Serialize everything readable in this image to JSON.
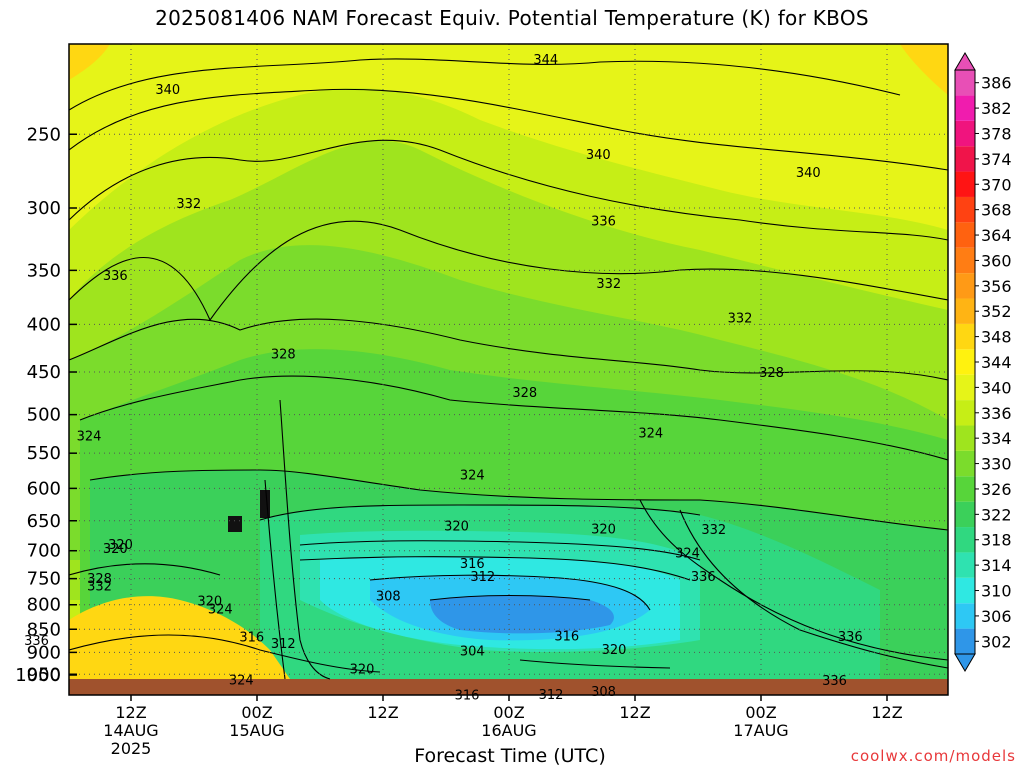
{
  "header": {
    "title": "2025081406 NAM Forecast Equiv. Potential Temperature (K) for KBOS"
  },
  "footer": {
    "xaxis_title": "Forecast Time (UTC)",
    "credit": "coolwx.com/models"
  },
  "chart_data": {
    "type": "heatmap",
    "title": "2025081406 NAM Forecast Equiv. Potential Temperature (K) for KBOS",
    "xlabel": "Forecast Time (UTC)",
    "ylabel": "",
    "y_scale": "log",
    "y_inverted": true,
    "ylim": [
      1000,
      200
    ],
    "y_ticks": [
      250,
      300,
      350,
      400,
      450,
      500,
      550,
      600,
      650,
      700,
      750,
      800,
      850,
      900,
      950,
      1000
    ],
    "x_ticks": [
      {
        "label": "12Z",
        "sub": [
          "14AUG",
          "2025"
        ]
      },
      {
        "label": "00Z",
        "sub": [
          "15AUG"
        ]
      },
      {
        "label": "12Z",
        "sub": []
      },
      {
        "label": "00Z",
        "sub": [
          "16AUG"
        ]
      },
      {
        "label": "12Z",
        "sub": []
      },
      {
        "label": "00Z",
        "sub": [
          "17AUG"
        ]
      },
      {
        "label": "12Z",
        "sub": []
      }
    ],
    "grid": true,
    "colorbar": {
      "labels": [
        302,
        306,
        310,
        314,
        318,
        322,
        326,
        330,
        334,
        336,
        340,
        344,
        348,
        352,
        356,
        360,
        364,
        368,
        370,
        374,
        378,
        382,
        386
      ],
      "colors": [
        "#2f96e8",
        "#2ec8f4",
        "#2fe8e2",
        "#2fe2b0",
        "#30d880",
        "#3bd05a",
        "#57d53a",
        "#7bdc2c",
        "#9fe41e",
        "#c6ee16",
        "#e6f418",
        "#fff20f",
        "#ffd712",
        "#ffb414",
        "#ff9a16",
        "#ff7d14",
        "#ff6210",
        "#ff4212",
        "#ff1414",
        "#f0144a",
        "#f0147e",
        "#f01cae",
        "#e84fb6"
      ]
    },
    "contour_labels": [
      {
        "text": "344",
        "t": 39.5,
        "p": 208
      },
      {
        "text": "340",
        "t": 3.5,
        "p": 224
      },
      {
        "text": "340",
        "t": 44.5,
        "p": 263
      },
      {
        "text": "340",
        "t": 64.5,
        "p": 275
      },
      {
        "text": "332",
        "t": 5.5,
        "p": 297
      },
      {
        "text": "336",
        "t": 45,
        "p": 310
      },
      {
        "text": "336",
        "t": -1.5,
        "p": 355
      },
      {
        "text": "332",
        "t": 45.5,
        "p": 362
      },
      {
        "text": "332",
        "t": 58,
        "p": 394
      },
      {
        "text": "328",
        "t": 14.5,
        "p": 431
      },
      {
        "text": "328",
        "t": 61,
        "p": 451
      },
      {
        "text": "328",
        "t": 37.5,
        "p": 474
      },
      {
        "text": "324",
        "t": -4,
        "p": 528
      },
      {
        "text": "324",
        "t": 49.5,
        "p": 524
      },
      {
        "text": "324",
        "t": 32.5,
        "p": 581
      },
      {
        "text": "320",
        "t": 31,
        "p": 659
      },
      {
        "text": "320",
        "t": 45,
        "p": 664
      },
      {
        "text": "320",
        "t": -1.5,
        "p": 697
      },
      {
        "text": "332",
        "t": 55.5,
        "p": 665
      },
      {
        "text": "324",
        "t": 53,
        "p": 705
      },
      {
        "text": "316",
        "t": 32.5,
        "p": 723
      },
      {
        "text": "312",
        "t": 33.5,
        "p": 747
      },
      {
        "text": "336",
        "t": 54.5,
        "p": 747
      },
      {
        "text": "328",
        "t": -3,
        "p": 751
      },
      {
        "text": "332",
        "t": -3,
        "p": 765
      },
      {
        "text": "308",
        "t": 24.5,
        "p": 784
      },
      {
        "text": "320",
        "t": 7.5,
        "p": 794
      },
      {
        "text": "324",
        "t": 8.5,
        "p": 809
      },
      {
        "text": "316",
        "t": 11.5,
        "p": 868
      },
      {
        "text": "316",
        "t": 41.5,
        "p": 865
      },
      {
        "text": "336",
        "t": 68.5,
        "p": 866
      },
      {
        "text": "336",
        "t": -9,
        "p": 875
      },
      {
        "text": "312",
        "t": 14.5,
        "p": 882
      },
      {
        "text": "304",
        "t": 32.5,
        "p": 898
      },
      {
        "text": "320",
        "t": 46,
        "p": 895
      },
      {
        "text": "320",
        "t": 22,
        "p": 939
      },
      {
        "text": "324",
        "t": 10.5,
        "p": 965
      },
      {
        "text": "336",
        "t": 67,
        "p": 966
      },
      {
        "text": "308",
        "t": 45,
        "p": 993
      },
      {
        "text": "316",
        "t": 32,
        "p": 1001
      },
      {
        "text": "312",
        "t": 40,
        "p": 1000
      },
      {
        "text": "320",
        "t": -1,
        "p": 690
      }
    ]
  }
}
